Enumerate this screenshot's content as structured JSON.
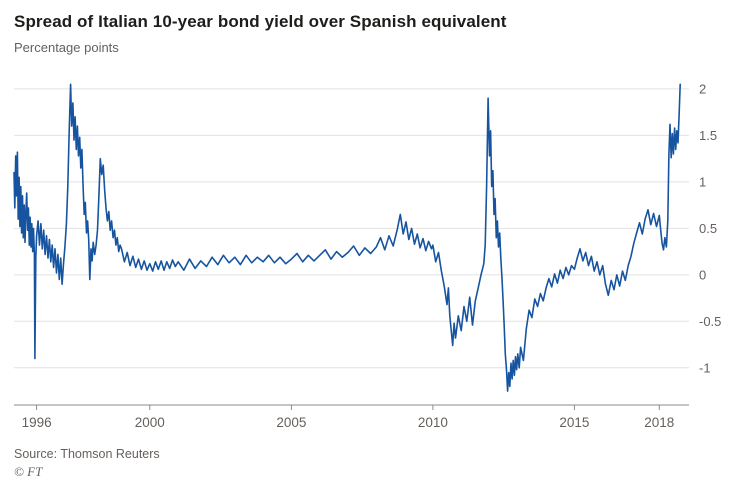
{
  "header": {
    "title": "Spread of Italian 10-year bond yield over Spanish equivalent",
    "subtitle": "Percentage points"
  },
  "footer": {
    "source": "Source: Thomson Reuters",
    "attribution": "© FT"
  },
  "colors": {
    "line": "#17549f",
    "grid": "#e2e2e2",
    "axis": "#8f8a86",
    "tick_text": "#66605c",
    "title_text": "#1d1d1b",
    "background": "#ffffff"
  },
  "chart_data": {
    "type": "line",
    "title": "Spread of Italian 10-year bond yield over Spanish equivalent",
    "ylabel": "Percentage points",
    "xlabel": "",
    "grid": "horizontal",
    "legend": "none",
    "y_axis_side": "right",
    "xlim": [
      1995.2,
      2019.05
    ],
    "ylim": [
      -1.4,
      2.15
    ],
    "xticks": [
      1996,
      2000,
      2005,
      2010,
      2015,
      2018
    ],
    "xtick_labels": [
      "1996",
      "2000",
      "2005",
      "2010",
      "2015",
      "2018"
    ],
    "yticks": [
      2,
      1.5,
      1,
      0.5,
      0,
      -0.5,
      -1
    ],
    "ytick_labels": [
      "2",
      "1.5",
      "1",
      "0.5",
      "0",
      "-0.5",
      "-1"
    ],
    "line_color": "#17549f",
    "grid_color": "#e2e2e2",
    "axis_color": "#8f8a86",
    "tick_color": "#66605c",
    "series": [
      {
        "name": "Italy minus Spain 10-year yield spread (percentage points)",
        "points": [
          [
            1995.2,
            1.1
          ],
          [
            1995.23,
            0.72
          ],
          [
            1995.26,
            1.28
          ],
          [
            1995.29,
            0.85
          ],
          [
            1995.32,
            1.32
          ],
          [
            1995.35,
            0.6
          ],
          [
            1995.38,
            1.05
          ],
          [
            1995.41,
            0.52
          ],
          [
            1995.44,
            0.95
          ],
          [
            1995.47,
            0.45
          ],
          [
            1995.5,
            0.85
          ],
          [
            1995.53,
            0.4
          ],
          [
            1995.56,
            0.75
          ],
          [
            1995.59,
            0.35
          ],
          [
            1995.62,
            0.68
          ],
          [
            1995.65,
            0.88
          ],
          [
            1995.68,
            0.48
          ],
          [
            1995.71,
            0.72
          ],
          [
            1995.74,
            0.32
          ],
          [
            1995.77,
            0.62
          ],
          [
            1995.8,
            0.3
          ],
          [
            1995.83,
            0.55
          ],
          [
            1995.86,
            0.25
          ],
          [
            1995.89,
            0.5
          ],
          [
            1995.92,
            0.22
          ],
          [
            1995.94,
            -0.9
          ],
          [
            1995.97,
            0.18
          ],
          [
            1996,
            0.42
          ],
          [
            1996.05,
            0.58
          ],
          [
            1996.1,
            0.32
          ],
          [
            1996.15,
            0.55
          ],
          [
            1996.2,
            0.28
          ],
          [
            1996.25,
            0.48
          ],
          [
            1996.3,
            0.22
          ],
          [
            1996.35,
            0.42
          ],
          [
            1996.4,
            0.18
          ],
          [
            1996.45,
            0.38
          ],
          [
            1996.5,
            0.14
          ],
          [
            1996.55,
            0.32
          ],
          [
            1996.6,
            0.08
          ],
          [
            1996.65,
            0.28
          ],
          [
            1996.7,
            0.02
          ],
          [
            1996.75,
            0.22
          ],
          [
            1996.8,
            -0.05
          ],
          [
            1996.85,
            0.18
          ],
          [
            1996.9,
            -0.1
          ],
          [
            1996.95,
            0.12
          ],
          [
            1997,
            0.3
          ],
          [
            1997.05,
            0.55
          ],
          [
            1997.1,
            0.95
          ],
          [
            1997.15,
            1.55
          ],
          [
            1997.2,
            2.05
          ],
          [
            1997.24,
            1.6
          ],
          [
            1997.28,
            1.85
          ],
          [
            1997.32,
            1.45
          ],
          [
            1997.36,
            1.7
          ],
          [
            1997.4,
            1.35
          ],
          [
            1997.44,
            1.6
          ],
          [
            1997.48,
            1.28
          ],
          [
            1997.52,
            1.48
          ],
          [
            1997.56,
            1.15
          ],
          [
            1997.6,
            1.35
          ],
          [
            1997.64,
            0.95
          ],
          [
            1997.68,
            0.65
          ],
          [
            1997.72,
            0.78
          ],
          [
            1997.76,
            0.45
          ],
          [
            1997.8,
            0.58
          ],
          [
            1997.84,
            0.38
          ],
          [
            1997.88,
            -0.05
          ],
          [
            1997.92,
            0.28
          ],
          [
            1997.96,
            0.15
          ],
          [
            1998,
            0.35
          ],
          [
            1998.05,
            0.22
          ],
          [
            1998.1,
            0.32
          ],
          [
            1998.15,
            0.48
          ],
          [
            1998.2,
            0.85
          ],
          [
            1998.25,
            1.25
          ],
          [
            1998.3,
            1.08
          ],
          [
            1998.35,
            1.18
          ],
          [
            1998.4,
            0.92
          ],
          [
            1998.45,
            0.72
          ],
          [
            1998.5,
            0.58
          ],
          [
            1998.55,
            0.68
          ],
          [
            1998.6,
            0.48
          ],
          [
            1998.65,
            0.58
          ],
          [
            1998.7,
            0.4
          ],
          [
            1998.75,
            0.48
          ],
          [
            1998.8,
            0.32
          ],
          [
            1998.85,
            0.4
          ],
          [
            1998.9,
            0.25
          ],
          [
            1998.95,
            0.32
          ],
          [
            1999,
            0.28
          ],
          [
            1999.1,
            0.14
          ],
          [
            1999.2,
            0.24
          ],
          [
            1999.3,
            0.1
          ],
          [
            1999.4,
            0.2
          ],
          [
            1999.5,
            0.08
          ],
          [
            1999.6,
            0.17
          ],
          [
            1999.7,
            0.06
          ],
          [
            1999.8,
            0.15
          ],
          [
            1999.9,
            0.05
          ],
          [
            2000,
            0.12
          ],
          [
            2000.1,
            0.04
          ],
          [
            2000.2,
            0.14
          ],
          [
            2000.3,
            0.06
          ],
          [
            2000.4,
            0.15
          ],
          [
            2000.5,
            0.05
          ],
          [
            2000.6,
            0.14
          ],
          [
            2000.7,
            0.07
          ],
          [
            2000.8,
            0.16
          ],
          [
            2000.9,
            0.09
          ],
          [
            2001,
            0.14
          ],
          [
            2001.2,
            0.05
          ],
          [
            2001.4,
            0.17
          ],
          [
            2001.6,
            0.07
          ],
          [
            2001.8,
            0.15
          ],
          [
            2002,
            0.09
          ],
          [
            2002.2,
            0.19
          ],
          [
            2002.4,
            0.11
          ],
          [
            2002.6,
            0.21
          ],
          [
            2002.8,
            0.13
          ],
          [
            2003,
            0.19
          ],
          [
            2003.2,
            0.11
          ],
          [
            2003.4,
            0.21
          ],
          [
            2003.6,
            0.13
          ],
          [
            2003.8,
            0.19
          ],
          [
            2004,
            0.14
          ],
          [
            2004.2,
            0.21
          ],
          [
            2004.4,
            0.13
          ],
          [
            2004.6,
            0.19
          ],
          [
            2004.8,
            0.12
          ],
          [
            2005,
            0.17
          ],
          [
            2005.2,
            0.23
          ],
          [
            2005.4,
            0.14
          ],
          [
            2005.6,
            0.21
          ],
          [
            2005.8,
            0.15
          ],
          [
            2006,
            0.21
          ],
          [
            2006.2,
            0.27
          ],
          [
            2006.4,
            0.17
          ],
          [
            2006.6,
            0.25
          ],
          [
            2006.8,
            0.19
          ],
          [
            2007,
            0.24
          ],
          [
            2007.2,
            0.31
          ],
          [
            2007.4,
            0.21
          ],
          [
            2007.6,
            0.29
          ],
          [
            2007.8,
            0.23
          ],
          [
            2008,
            0.3
          ],
          [
            2008.15,
            0.4
          ],
          [
            2008.3,
            0.27
          ],
          [
            2008.45,
            0.42
          ],
          [
            2008.6,
            0.31
          ],
          [
            2008.75,
            0.5
          ],
          [
            2008.85,
            0.65
          ],
          [
            2008.95,
            0.44
          ],
          [
            2009.05,
            0.57
          ],
          [
            2009.15,
            0.38
          ],
          [
            2009.25,
            0.5
          ],
          [
            2009.35,
            0.33
          ],
          [
            2009.45,
            0.44
          ],
          [
            2009.55,
            0.29
          ],
          [
            2009.65,
            0.39
          ],
          [
            2009.75,
            0.26
          ],
          [
            2009.85,
            0.36
          ],
          [
            2009.95,
            0.28
          ],
          [
            2010,
            0.32
          ],
          [
            2010.1,
            0.14
          ],
          [
            2010.2,
            0.24
          ],
          [
            2010.3,
            0.04
          ],
          [
            2010.4,
            -0.12
          ],
          [
            2010.5,
            -0.32
          ],
          [
            2010.55,
            -0.14
          ],
          [
            2010.6,
            -0.44
          ],
          [
            2010.7,
            -0.76
          ],
          [
            2010.75,
            -0.52
          ],
          [
            2010.8,
            -0.68
          ],
          [
            2010.9,
            -0.44
          ],
          [
            2011,
            -0.6
          ],
          [
            2011.1,
            -0.34
          ],
          [
            2011.2,
            -0.5
          ],
          [
            2011.3,
            -0.24
          ],
          [
            2011.4,
            -0.54
          ],
          [
            2011.5,
            -0.28
          ],
          [
            2011.6,
            -0.14
          ],
          [
            2011.7,
            0
          ],
          [
            2011.8,
            0.12
          ],
          [
            2011.85,
            0.32
          ],
          [
            2011.9,
            0.95
          ],
          [
            2011.95,
            1.9
          ],
          [
            2012,
            1.28
          ],
          [
            2012.04,
            1.55
          ],
          [
            2012.08,
            0.95
          ],
          [
            2012.12,
            1.12
          ],
          [
            2012.16,
            0.65
          ],
          [
            2012.2,
            0.82
          ],
          [
            2012.24,
            0.4
          ],
          [
            2012.28,
            0.58
          ],
          [
            2012.32,
            0.3
          ],
          [
            2012.36,
            0.45
          ],
          [
            2012.4,
            0.18
          ],
          [
            2012.44,
            -0.02
          ],
          [
            2012.48,
            -0.28
          ],
          [
            2012.52,
            -0.55
          ],
          [
            2012.56,
            -0.85
          ],
          [
            2012.6,
            -1.02
          ],
          [
            2012.64,
            -1.25
          ],
          [
            2012.68,
            -1.05
          ],
          [
            2012.72,
            -1.2
          ],
          [
            2012.76,
            -0.95
          ],
          [
            2012.8,
            -1.12
          ],
          [
            2012.84,
            -0.92
          ],
          [
            2012.88,
            -1.08
          ],
          [
            2012.92,
            -0.88
          ],
          [
            2012.96,
            -1.02
          ],
          [
            2013,
            -0.85
          ],
          [
            2013.05,
            -1
          ],
          [
            2013.1,
            -0.78
          ],
          [
            2013.2,
            -0.92
          ],
          [
            2013.3,
            -0.58
          ],
          [
            2013.4,
            -0.38
          ],
          [
            2013.5,
            -0.46
          ],
          [
            2013.6,
            -0.26
          ],
          [
            2013.7,
            -0.34
          ],
          [
            2013.8,
            -0.2
          ],
          [
            2013.9,
            -0.28
          ],
          [
            2014,
            -0.14
          ],
          [
            2014.1,
            -0.04
          ],
          [
            2014.2,
            -0.13
          ],
          [
            2014.3,
            0.01
          ],
          [
            2014.4,
            -0.09
          ],
          [
            2014.5,
            0.05
          ],
          [
            2014.6,
            -0.04
          ],
          [
            2014.7,
            0.08
          ],
          [
            2014.8,
            0
          ],
          [
            2014.9,
            0.1
          ],
          [
            2015,
            0.06
          ],
          [
            2015.1,
            0.18
          ],
          [
            2015.2,
            0.28
          ],
          [
            2015.3,
            0.15
          ],
          [
            2015.4,
            0.24
          ],
          [
            2015.5,
            0.1
          ],
          [
            2015.6,
            0.2
          ],
          [
            2015.7,
            0.04
          ],
          [
            2015.8,
            0.14
          ],
          [
            2015.9,
            0
          ],
          [
            2016,
            0.1
          ],
          [
            2016.1,
            -0.1
          ],
          [
            2016.2,
            -0.22
          ],
          [
            2016.3,
            -0.06
          ],
          [
            2016.4,
            -0.16
          ],
          [
            2016.5,
            0
          ],
          [
            2016.6,
            -0.12
          ],
          [
            2016.7,
            0.04
          ],
          [
            2016.8,
            -0.06
          ],
          [
            2016.9,
            0.1
          ],
          [
            2017,
            0.2
          ],
          [
            2017.1,
            0.34
          ],
          [
            2017.2,
            0.45
          ],
          [
            2017.3,
            0.56
          ],
          [
            2017.4,
            0.44
          ],
          [
            2017.5,
            0.6
          ],
          [
            2017.6,
            0.7
          ],
          [
            2017.7,
            0.54
          ],
          [
            2017.8,
            0.66
          ],
          [
            2017.9,
            0.52
          ],
          [
            2018,
            0.64
          ],
          [
            2018.05,
            0.48
          ],
          [
            2018.1,
            0.34
          ],
          [
            2018.15,
            0.27
          ],
          [
            2018.2,
            0.4
          ],
          [
            2018.25,
            0.3
          ],
          [
            2018.3,
            0.58
          ],
          [
            2018.34,
            1.3
          ],
          [
            2018.38,
            1.62
          ],
          [
            2018.42,
            1.26
          ],
          [
            2018.46,
            1.52
          ],
          [
            2018.5,
            1.3
          ],
          [
            2018.54,
            1.58
          ],
          [
            2018.58,
            1.35
          ],
          [
            2018.62,
            1.55
          ],
          [
            2018.66,
            1.42
          ],
          [
            2018.7,
            1.72
          ],
          [
            2018.74,
            2.05
          ]
        ]
      }
    ]
  }
}
